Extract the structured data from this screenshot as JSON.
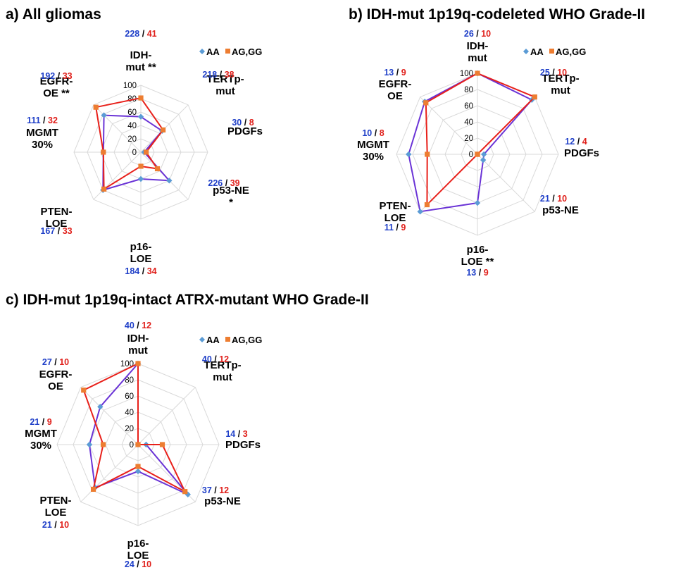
{
  "colors": {
    "aa": "#5b9bd5",
    "aa_line": "#6a33d6",
    "ag": "#ed7d31",
    "ag_line": "#e8201a",
    "grid": "#d9d9d9"
  },
  "legend": {
    "aa": "AA",
    "ag": "AG,GG"
  },
  "chart_data": [
    {
      "type": "radar",
      "title": "a)  All gliomas",
      "rmax": 100,
      "ticks": [
        "0",
        "20",
        "40",
        "60",
        "80",
        "100"
      ],
      "categories": [
        {
          "lines": [
            "IDH-",
            "mut **"
          ],
          "n_aa": "228",
          "n_ag": "41"
        },
        {
          "lines": [
            "TERTp-",
            "mut"
          ],
          "n_aa": "218",
          "n_ag": "38"
        },
        {
          "lines": [
            "PDGFs"
          ],
          "n_aa": "30",
          "n_ag": "8"
        },
        {
          "lines": [
            "p53-NE",
            "*"
          ],
          "n_aa": "226",
          "n_ag": "39"
        },
        {
          "lines": [
            "p16-",
            "LOE"
          ],
          "n_aa": "184",
          "n_ag": "34"
        },
        {
          "lines": [
            "PTEN-",
            "LOE"
          ],
          "n_aa": "167",
          "n_ag": "33"
        },
        {
          "lines": [
            "MGMT",
            "30%"
          ],
          "n_aa": "111",
          "n_ag": "32"
        },
        {
          "lines": [
            "EGFR-",
            "OE **"
          ],
          "n_aa": "192",
          "n_ag": "33"
        }
      ],
      "series": [
        {
          "name": "AA",
          "values": [
            53,
            45,
            5,
            60,
            40,
            80,
            56,
            78
          ]
        },
        {
          "name": "AG,GG",
          "values": [
            81,
            47,
            8,
            35,
            21,
            78,
            56,
            95
          ]
        }
      ]
    },
    {
      "type": "radar",
      "title": "b)    IDH-mut 1p19q-codeleted WHO Grade-II",
      "rmax": 100,
      "ticks": [
        "0",
        "20",
        "40",
        "60",
        "80",
        "100"
      ],
      "categories": [
        {
          "lines": [
            "IDH-",
            "mut"
          ],
          "n_aa": "26",
          "n_ag": "10"
        },
        {
          "lines": [
            "TERTp-",
            "mut"
          ],
          "n_aa": "25",
          "n_ag": "10"
        },
        {
          "lines": [
            "PDGFs"
          ],
          "n_aa": "12",
          "n_ag": "4"
        },
        {
          "lines": [
            "p53-NE"
          ],
          "n_aa": "21",
          "n_ag": "10"
        },
        {
          "lines": [
            "p16-",
            "LOE **"
          ],
          "n_aa": "13",
          "n_ag": "9"
        },
        {
          "lines": [
            "PTEN-",
            "LOE"
          ],
          "n_aa": "11",
          "n_ag": "9"
        },
        {
          "lines": [
            "MGMT",
            "30%"
          ],
          "n_aa": "10",
          "n_ag": "8"
        },
        {
          "lines": [
            "EGFR-",
            "OE"
          ],
          "n_aa": "13",
          "n_ag": "9"
        }
      ],
      "series": [
        {
          "name": "AA",
          "values": [
            100,
            95,
            8,
            10,
            60,
            100,
            85,
            92
          ]
        },
        {
          "name": "AG,GG",
          "values": [
            100,
            100,
            0,
            0,
            0,
            88,
            62,
            90
          ]
        }
      ]
    },
    {
      "type": "radar",
      "title": "c) IDH-mut 1p19q-intact ATRX-mutant WHO Grade-II",
      "rmax": 100,
      "ticks": [
        "0",
        "20",
        "40",
        "60",
        "80",
        "100"
      ],
      "categories": [
        {
          "lines": [
            "IDH-",
            "mut"
          ],
          "n_aa": "40",
          "n_ag": "12"
        },
        {
          "lines": [
            "TERTp-",
            "mut"
          ],
          "n_aa": "40",
          "n_ag": "12"
        },
        {
          "lines": [
            "PDGFs"
          ],
          "n_aa": "14",
          "n_ag": "3"
        },
        {
          "lines": [
            "p53-NE"
          ],
          "n_aa": "37",
          "n_ag": "12"
        },
        {
          "lines": [
            "p16-",
            "LOE"
          ],
          "n_aa": "24",
          "n_ag": "10"
        },
        {
          "lines": [
            "PTEN-",
            "LOE"
          ],
          "n_aa": "21",
          "n_ag": "10"
        },
        {
          "lines": [
            "MGMT",
            "30%"
          ],
          "n_aa": "21",
          "n_ag": "9"
        },
        {
          "lines": [
            "EGFR-",
            "OE"
          ],
          "n_aa": "27",
          "n_ag": "10"
        }
      ],
      "series": [
        {
          "name": "AA",
          "values": [
            100,
            0,
            10,
            87,
            33,
            75,
            60,
            66
          ]
        },
        {
          "name": "AG,GG",
          "values": [
            100,
            0,
            30,
            82,
            27,
            78,
            43,
            95
          ]
        }
      ]
    }
  ]
}
